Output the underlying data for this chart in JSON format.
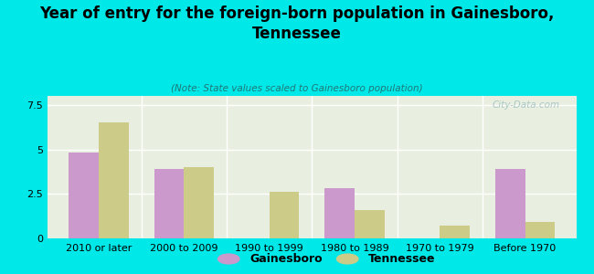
{
  "title": "Year of entry for the foreign-born population in Gainesboro,\nTennessee",
  "subtitle": "(Note: State values scaled to Gainesboro population)",
  "categories": [
    "2010 or later",
    "2000 to 2009",
    "1990 to 1999",
    "1980 to 1989",
    "1970 to 1979",
    "Before 1970"
  ],
  "gainesboro_values": [
    4.8,
    3.9,
    0.0,
    2.8,
    0.0,
    3.9
  ],
  "tennessee_values": [
    6.5,
    4.0,
    2.6,
    1.6,
    0.7,
    0.9
  ],
  "gainesboro_color": "#cc99cc",
  "tennessee_color": "#cccc88",
  "bar_width": 0.35,
  "ylim": [
    0,
    8.0
  ],
  "yticks": [
    0,
    2.5,
    5,
    7.5
  ],
  "bg_color": "#00e8e8",
  "plot_bg_top": "#e8efe0",
  "plot_bg_bottom": "#f5f8ee",
  "watermark": "City-Data.com",
  "legend_gainesboro": "Gainesboro",
  "legend_tennessee": "Tennessee",
  "title_fontsize": 12,
  "subtitle_fontsize": 7.5,
  "tick_fontsize": 8
}
